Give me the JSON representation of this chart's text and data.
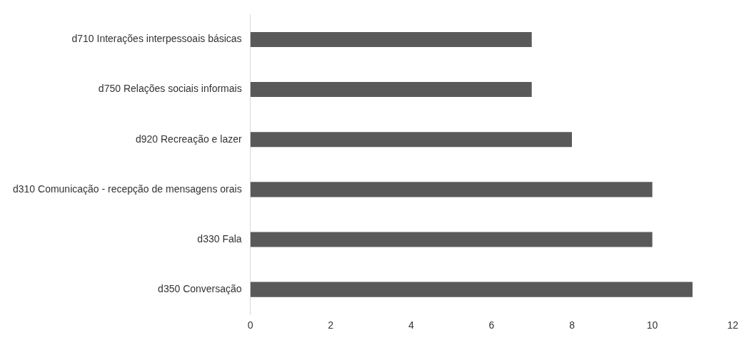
{
  "chart_data": {
    "type": "bar",
    "orientation": "horizontal",
    "categories": [
      "d710 Interações interpessoais básicas",
      "d750 Relações sociais informais",
      "d920 Recreação e lazer",
      "d310 Comunicação - recepção de mensagens orais",
      "d330 Fala",
      "d350 Conversação"
    ],
    "values": [
      7,
      7,
      8,
      10,
      10,
      11
    ],
    "color": "#595959",
    "xlim": [
      0,
      12
    ],
    "xticks": [
      0,
      2,
      4,
      6,
      8,
      10,
      12
    ],
    "grid": false,
    "legend": false
  }
}
